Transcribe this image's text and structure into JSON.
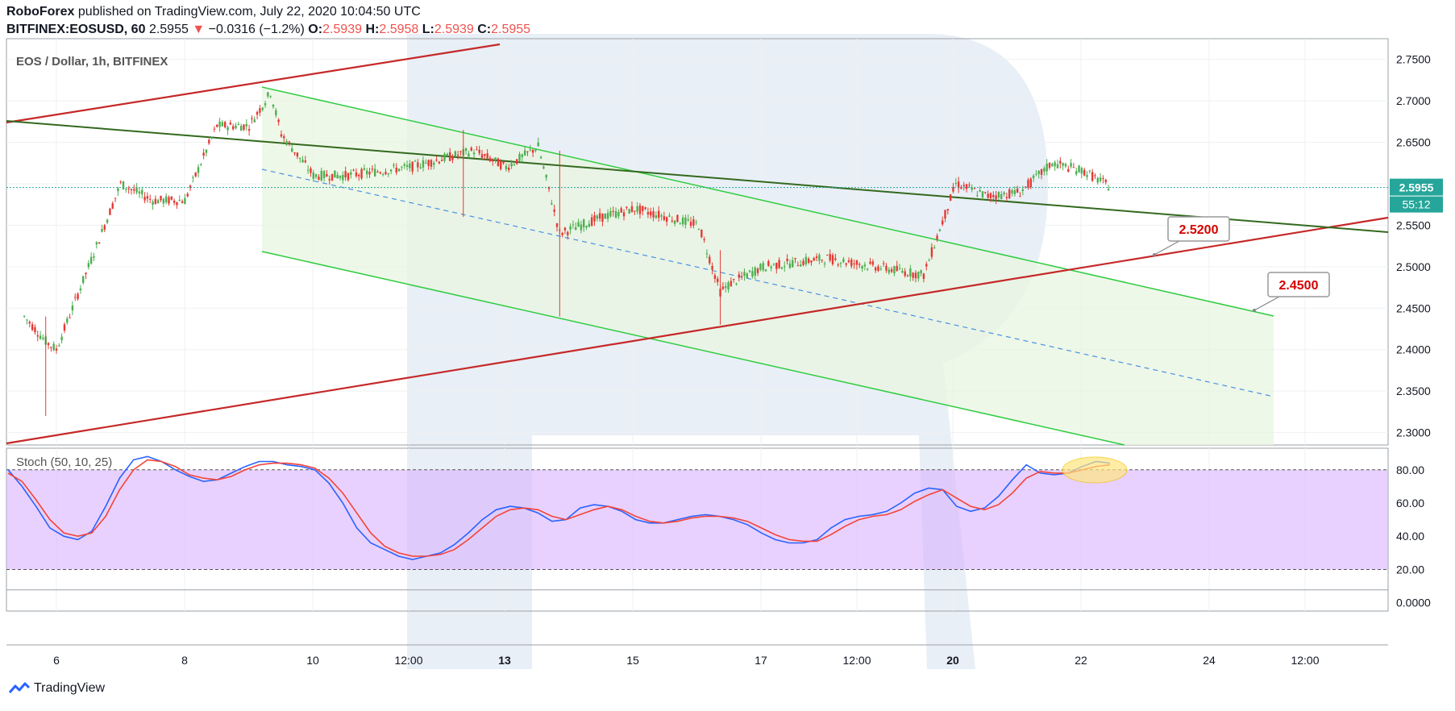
{
  "header": {
    "author": "RoboForex",
    "published_text": "published on TradingView.com, July 22, 2020 10:04:50 UTC",
    "symbol": "BITFINEX:EOSUSD, 60",
    "last": "2.5955",
    "change_arrow": "▼",
    "change": "−0.0316 (−1.2%)",
    "ohlc": [
      {
        "label": "O:",
        "value": "2.5939"
      },
      {
        "label": "H:",
        "value": "2.5958"
      },
      {
        "label": "L:",
        "value": "2.5939"
      },
      {
        "label": "C:",
        "value": "2.5955"
      }
    ]
  },
  "colors": {
    "bull": "#26a69a",
    "bear": "#ef5350",
    "candle_up": "#4caf50",
    "candle_down": "#e53935",
    "channel": "#2ecc40",
    "trend_red": "#c62828",
    "trend_green": "#33691e",
    "stoch_k": "#2962ff",
    "stoch_d": "#f44336",
    "stoch_band": "#d9b3ff",
    "price_badge": "#26a69a",
    "label_text": "#d50000"
  },
  "footer": {
    "brand": "TradingView",
    "logo_icon": "tradingview-logo-icon"
  },
  "chart_data": [
    {
      "type": "line",
      "title": "EOS / Dollar, 1h, BITFINEX",
      "xlabel": "",
      "ylabel": "",
      "x_tick_labels": [
        "6",
        "8",
        "10",
        "12:00",
        "13",
        "15",
        "17",
        "12:00",
        "20",
        "22",
        "24",
        "12:00"
      ],
      "y_tick_labels": [
        "2.7500",
        "2.7000",
        "2.6500",
        "2.6000",
        "2.5500",
        "2.5000",
        "2.4500",
        "2.4000",
        "2.3500",
        "2.3000"
      ],
      "ylim": [
        2.285,
        2.775
      ],
      "grid": true,
      "current_price": {
        "value": 2.5955,
        "label": "2.5955",
        "countdown": "55:12"
      },
      "price_path_day_close": [
        {
          "x": "Jul 5 12:00",
          "y": 2.44
        },
        {
          "x": "Jul 5 20:00",
          "y": 2.41
        },
        {
          "x": "Jul 6 00:00",
          "y": 2.4
        },
        {
          "x": "Jul 6 12:00",
          "y": 2.5
        },
        {
          "x": "Jul 7 00:00",
          "y": 2.6
        },
        {
          "x": "Jul 7 12:00",
          "y": 2.58
        },
        {
          "x": "Jul 8 00:00",
          "y": 2.58
        },
        {
          "x": "Jul 8 12:00",
          "y": 2.67
        },
        {
          "x": "Jul 9 00:00",
          "y": 2.67
        },
        {
          "x": "Jul 9 08:00",
          "y": 2.71
        },
        {
          "x": "Jul 9 12:00",
          "y": 2.66
        },
        {
          "x": "Jul 10 00:00",
          "y": 2.61
        },
        {
          "x": "Jul 10 12:00",
          "y": 2.61
        },
        {
          "x": "Jul 11 12:00",
          "y": 2.62
        },
        {
          "x": "Jul 12 12:00",
          "y": 2.64
        },
        {
          "x": "Jul 13 00:00",
          "y": 2.62
        },
        {
          "x": "Jul 13 12:00",
          "y": 2.645
        },
        {
          "x": "Jul 13 20:00",
          "y": 2.54
        },
        {
          "x": "Jul 14 12:00",
          "y": 2.56
        },
        {
          "x": "Jul 15 00:00",
          "y": 2.57
        },
        {
          "x": "Jul 16 00:00",
          "y": 2.55
        },
        {
          "x": "Jul 16 08:00",
          "y": 2.47
        },
        {
          "x": "Jul 16 12:00",
          "y": 2.48
        },
        {
          "x": "Jul 17 00:00",
          "y": 2.5
        },
        {
          "x": "Jul 18 00:00",
          "y": 2.51
        },
        {
          "x": "Jul 19 12:00",
          "y": 2.49
        },
        {
          "x": "Jul 20 00:00",
          "y": 2.6
        },
        {
          "x": "Jul 20 12:00",
          "y": 2.585
        },
        {
          "x": "Jul 21 00:00",
          "y": 2.59
        },
        {
          "x": "Jul 21 12:00",
          "y": 2.625
        },
        {
          "x": "Jul 22 00:00",
          "y": 2.615
        },
        {
          "x": "Jul 22 10:00",
          "y": 2.5955
        }
      ],
      "annotations": [
        {
          "text": "2.5200",
          "value": 2.52
        },
        {
          "text": "2.4500",
          "value": 2.45
        }
      ],
      "drawings": [
        {
          "kind": "ascending-channel-upper",
          "color": "red"
        },
        {
          "kind": "ascending-channel-lower",
          "color": "red"
        },
        {
          "kind": "descending-trendline",
          "color": "dark-green"
        },
        {
          "kind": "descending-channel",
          "color": "green",
          "with_median_dashed": true
        }
      ]
    },
    {
      "type": "line",
      "title": "Stoch (50, 10, 25)",
      "y_tick_labels": [
        "80.00",
        "60.00",
        "40.00",
        "20.00",
        "0.0000"
      ],
      "ylim": [
        -5,
        93
      ],
      "levels": [
        80,
        20
      ],
      "series": [
        {
          "color": "blue",
          "values": [
            80,
            70,
            58,
            45,
            40,
            38,
            43,
            58,
            75,
            86,
            88,
            85,
            80,
            76,
            73,
            74,
            78,
            82,
            85,
            85,
            83,
            82,
            80,
            72,
            60,
            45,
            36,
            32,
            28,
            26,
            28,
            30,
            35,
            42,
            50,
            56,
            58,
            57,
            54,
            49,
            50,
            57,
            59,
            58,
            55,
            50,
            48,
            48,
            50,
            52,
            53,
            52,
            50,
            47,
            42,
            38,
            36,
            36,
            38,
            45,
            50,
            52,
            53,
            55,
            60,
            66,
            69,
            68,
            58,
            55,
            57,
            64,
            74,
            83,
            78,
            77,
            78,
            82,
            85,
            84
          ]
        },
        {
          "color": "red",
          "values": [
            78,
            73,
            62,
            50,
            42,
            40,
            42,
            52,
            68,
            80,
            86,
            85,
            82,
            77,
            75,
            74,
            76,
            80,
            83,
            84,
            84,
            83,
            81,
            75,
            66,
            54,
            42,
            34,
            30,
            28,
            28,
            29,
            32,
            38,
            45,
            52,
            56,
            57,
            56,
            52,
            50,
            53,
            56,
            58,
            56,
            52,
            49,
            48,
            49,
            51,
            52,
            52,
            51,
            49,
            45,
            41,
            38,
            37,
            37,
            41,
            46,
            50,
            52,
            53,
            56,
            61,
            65,
            68,
            63,
            58,
            56,
            59,
            66,
            75,
            79,
            78,
            78,
            80,
            82,
            83
          ]
        }
      ]
    }
  ]
}
